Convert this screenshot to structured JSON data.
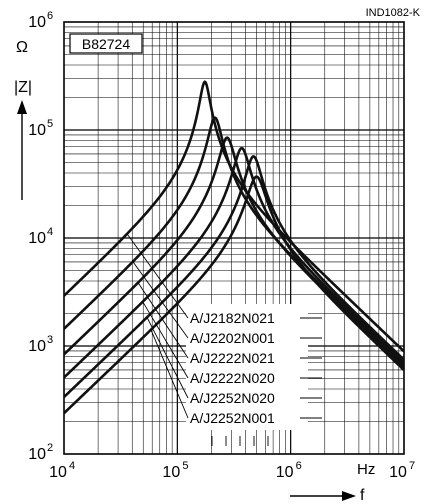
{
  "chart_data": {
    "type": "line",
    "figure_id": "IND1082-K",
    "product_label": "B82724",
    "ylabel": "|Z|",
    "ylabel_unit": "Ω",
    "xlabel": "f",
    "xlabel_unit": "Hz",
    "x_scale": "log",
    "y_scale": "log",
    "xlim": [
      10000,
      10000000
    ],
    "ylim": [
      100,
      1000000
    ],
    "x_ticks": [
      {
        "value": 10000,
        "base": "10",
        "exp": "4"
      },
      {
        "value": 100000,
        "base": "10",
        "exp": "5"
      },
      {
        "value": 1000000,
        "base": "10",
        "exp": "6"
      },
      {
        "value": 10000000,
        "base": "10",
        "exp": "7"
      }
    ],
    "y_ticks": [
      {
        "value": 100,
        "base": "10",
        "exp": "2"
      },
      {
        "value": 1000,
        "base": "10",
        "exp": "3"
      },
      {
        "value": 10000,
        "base": "10",
        "exp": "4"
      },
      {
        "value": 100000,
        "base": "10",
        "exp": "5"
      },
      {
        "value": 1000000,
        "base": "10",
        "exp": "6"
      }
    ],
    "grid": true,
    "series_colors": [
      "#111111"
    ],
    "series": [
      {
        "name": "A/J2182N021",
        "peak_f": 175000,
        "peak_z": 280000,
        "q": 5.5,
        "z_1e4": 2000
      },
      {
        "name": "A/J2202N001",
        "peak_f": 215000,
        "peak_z": 130000,
        "q": 4.2,
        "z_1e4": 1600
      },
      {
        "name": "A/J2222N021",
        "peak_f": 275000,
        "peak_z": 85000,
        "q": 3.7,
        "z_1e4": 900
      },
      {
        "name": "A/J2222N020",
        "peak_f": 370000,
        "peak_z": 68000,
        "q": 3.6,
        "z_1e4": 680
      },
      {
        "name": "A/J2252N020",
        "peak_f": 470000,
        "peak_z": 57000,
        "q": 3.6,
        "z_1e4": 520
      },
      {
        "name": "A/J2252N001",
        "peak_f": 500000,
        "peak_z": 37000,
        "q": 3.1,
        "z_1e4": 400
      }
    ]
  }
}
